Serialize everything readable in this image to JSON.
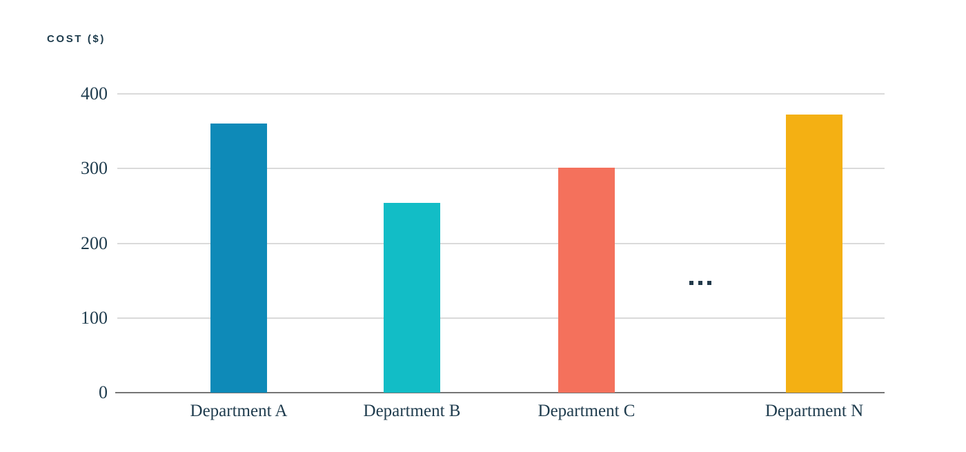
{
  "chart_data": {
    "type": "bar",
    "title": "COST ($)",
    "categories": [
      "Department A",
      "Department B",
      "Department C",
      "Department N"
    ],
    "values": [
      360,
      254,
      301,
      372
    ],
    "bar_colors": [
      "#0e8ab8",
      "#12bdc6",
      "#f4715c",
      "#f4b013"
    ],
    "xlabel": "",
    "ylabel": "COST ($)",
    "ylim": [
      0,
      400
    ],
    "yticks": [
      0,
      100,
      200,
      300,
      400
    ],
    "grid": "horizontal",
    "legend": "none",
    "annotation": {
      "text": "...",
      "meaning": "ellipsis indicating omitted departments",
      "between": [
        "Department C",
        "Department N"
      ]
    }
  },
  "colors": {
    "background": "#ffffff",
    "text": "#1e3b4d",
    "gridline": "#dadada",
    "axis_line": "#757575",
    "bar_department_a": "#0e8ab8",
    "bar_department_b": "#12bdc6",
    "bar_department_c": "#f4715c",
    "bar_department_n": "#f4b013"
  }
}
